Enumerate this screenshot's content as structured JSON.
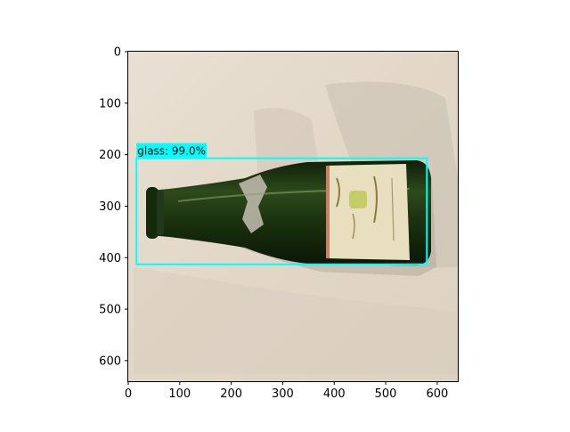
{
  "figure": {
    "image_extent": [
      0,
      640
    ],
    "x_ticks": [
      0,
      100,
      200,
      300,
      400,
      500,
      600
    ],
    "y_ticks": [
      0,
      100,
      200,
      300,
      400,
      500,
      600
    ]
  },
  "detection": {
    "label_text": "glass: 99.0%",
    "class": "glass",
    "confidence": 99.0,
    "bbox_data": [
      16,
      207,
      580,
      413
    ],
    "box_color": "#00ffff"
  },
  "photo": {
    "subject": "green-glass-bottle",
    "bottle_color": "#1f3a12",
    "label_color": "#e8dfbf",
    "background_color": "#e4d9ca"
  }
}
